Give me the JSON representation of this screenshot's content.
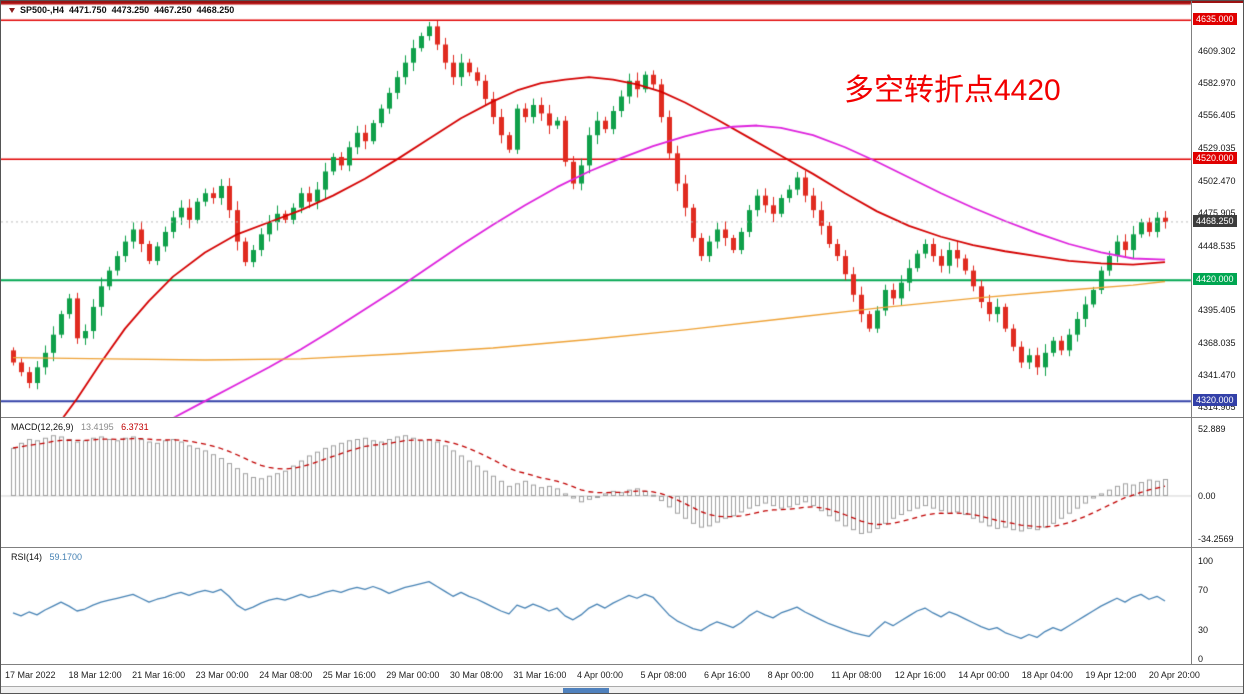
{
  "header": {
    "symbol": "SP500-,H4",
    "open": "4471.750",
    "high": "4473.250",
    "low": "4467.250",
    "close": "4468.250"
  },
  "annotation": {
    "text": "多空转折点4420",
    "color": "#f20000"
  },
  "indicators": {
    "macd_label": {
      "name": "MACD(12,26,9)",
      "value_main": "13.4195",
      "value_signal": "6.3731"
    },
    "rsi_label": {
      "name": "RSI(14)",
      "value": "59.1700"
    }
  },
  "price_axis": {
    "ticks": [
      "4609.302",
      "4582.970",
      "4556.405",
      "4529.035",
      "4502.470",
      "4475.905",
      "4448.535",
      "4395.405",
      "4368.035",
      "4341.470",
      "4314.905"
    ],
    "badges": [
      {
        "text": "4635.000",
        "price": 4635.0,
        "bg": "#e00000"
      },
      {
        "text": "4520.000",
        "price": 4520.0,
        "bg": "#e00000"
      },
      {
        "text": "4468.250",
        "price": 4468.25,
        "bg": "#3c3c3c"
      },
      {
        "text": "4420.000",
        "price": 4420.0,
        "bg": "#00a651"
      },
      {
        "text": "4320.000",
        "price": 4320.0,
        "bg": "#3340a8"
      }
    ]
  },
  "macd_axis": [
    {
      "label": "52.889",
      "value": 52.889
    },
    {
      "label": "0.00",
      "value": 0
    },
    {
      "label": "-34.2569",
      "value": -34.2569
    }
  ],
  "rsi_axis": [
    {
      "label": "100",
      "value": 100
    },
    {
      "label": "70",
      "value": 70
    },
    {
      "label": "30",
      "value": 30
    },
    {
      "label": "0",
      "value": 0
    }
  ],
  "colors": {
    "candle_up": "#0fa04a",
    "candle_down": "#e02b20",
    "ma_fast": "#d40000",
    "ma_mid": "#dd22dd",
    "ma_slow": "#eea236",
    "macd_hist": "#a0a0a0",
    "macd_signal": "#c00000",
    "rsi_line": "#4682b4",
    "last_price_line": "#bbbbbb"
  },
  "chart_data": {
    "type": "candlestick",
    "symbol": "SP500-",
    "timeframe": "H4",
    "x_ticks": [
      "17 Mar 2022",
      "18 Mar 12:00",
      "21 Mar 16:00",
      "23 Mar 00:00",
      "24 Mar 08:00",
      "25 Mar 16:00",
      "29 Mar 00:00",
      "30 Mar 08:00",
      "31 Mar 16:00",
      "4 Apr 00:00",
      "5 Apr 08:00",
      "6 Apr 16:00",
      "8 Apr 00:00",
      "11 Apr 08:00",
      "12 Apr 16:00",
      "14 Apr 00:00",
      "18 Apr 04:00",
      "19 Apr 12:00",
      "20 Apr 20:00"
    ],
    "panels": [
      {
        "name": "price",
        "type": "candlestick",
        "ylim": [
          4306.9,
          4651
        ],
        "first_open": 4362,
        "closes": [
          4352,
          4344,
          4335,
          4348,
          4360,
          4375,
          4392,
          4405,
          4372,
          4378,
          4398,
          4415,
          4428,
          4440,
          4452,
          4462,
          4450,
          4436,
          4448,
          4460,
          4472,
          4480,
          4470,
          4485,
          4492,
          4488,
          4498,
          4478,
          4452,
          4435,
          4445,
          4458,
          4468,
          4475,
          4470,
          4480,
          4492,
          4485,
          4495,
          4510,
          4522,
          4515,
          4530,
          4542,
          4535,
          4550,
          4562,
          4575,
          4588,
          4600,
          4612,
          4622,
          4630,
          4615,
          4600,
          4588,
          4600,
          4592,
          4585,
          4570,
          4555,
          4540,
          4528,
          4562,
          4555,
          4565,
          4558,
          4548,
          4552,
          4518,
          4500,
          4515,
          4540,
          4552,
          4545,
          4560,
          4572,
          4585,
          4578,
          4590,
          4582,
          4555,
          4525,
          4500,
          4480,
          4455,
          4440,
          4452,
          4462,
          4455,
          4445,
          4460,
          4478,
          4490,
          4482,
          4475,
          4488,
          4495,
          4505,
          4490,
          4478,
          4465,
          4450,
          4440,
          4425,
          4408,
          4392,
          4380,
          4395,
          4412,
          4405,
          4418,
          4430,
          4442,
          4450,
          4440,
          4432,
          4445,
          4438,
          4428,
          4415,
          4402,
          4392,
          4398,
          4380,
          4365,
          4352,
          4358,
          4348,
          4360,
          4370,
          4362,
          4375,
          4388,
          4400,
          4412,
          4428,
          4440,
          4452,
          4445,
          4458,
          4468,
          4460,
          4471.75,
          4468.25
        ],
        "last_price": 4468.25,
        "levels": [
          {
            "price": 4649,
            "color": "#b00000",
            "width": 2
          },
          {
            "price": 4635,
            "color": "#e00000",
            "width": 1.5
          },
          {
            "price": 4520,
            "color": "#e00000",
            "width": 1.5
          },
          {
            "price": 4420,
            "color": "#00a651",
            "width": 2
          },
          {
            "price": 4320,
            "color": "#3340a8",
            "width": 2
          }
        ],
        "moving_averages": [
          {
            "name": "ma-fast-red",
            "color": "#d40000",
            "width": 1.8,
            "points": [
              [
                5,
                4295
              ],
              [
                8,
                4322
              ],
              [
                11,
                4352
              ],
              [
                14,
                4380
              ],
              [
                17,
                4403
              ],
              [
                20,
                4423
              ],
              [
                24,
                4443
              ],
              [
                28,
                4458
              ],
              [
                32,
                4468
              ],
              [
                36,
                4478
              ],
              [
                40,
                4490
              ],
              [
                44,
                4504
              ],
              [
                48,
                4520
              ],
              [
                52,
                4537
              ],
              [
                56,
                4554
              ],
              [
                60,
                4568
              ],
              [
                63,
                4577
              ],
              [
                66,
                4583
              ],
              [
                69,
                4586
              ],
              [
                72,
                4588
              ],
              [
                75,
                4586
              ],
              [
                78,
                4582
              ],
              [
                81,
                4576
              ],
              [
                84,
                4567
              ],
              [
                88,
                4553
              ],
              [
                92,
                4538
              ],
              [
                96,
                4523
              ],
              [
                100,
                4508
              ],
              [
                104,
                4492
              ],
              [
                108,
                4477
              ],
              [
                112,
                4465
              ],
              [
                116,
                4456
              ],
              [
                120,
                4449
              ],
              [
                124,
                4444
              ],
              [
                128,
                4440
              ],
              [
                132,
                4436
              ],
              [
                136,
                4434
              ],
              [
                140,
                4433
              ],
              [
                144,
                4435
              ]
            ]
          },
          {
            "name": "ma-mid-magenta",
            "color": "#dd22dd",
            "width": 1.8,
            "points": [
              [
                20,
                4306
              ],
              [
                24,
                4320
              ],
              [
                28,
                4334
              ],
              [
                32,
                4348
              ],
              [
                36,
                4363
              ],
              [
                40,
                4379
              ],
              [
                44,
                4396
              ],
              [
                48,
                4413
              ],
              [
                52,
                4431
              ],
              [
                56,
                4449
              ],
              [
                60,
                4466
              ],
              [
                64,
                4482
              ],
              [
                68,
                4497
              ],
              [
                72,
                4510
              ],
              [
                76,
                4521
              ],
              [
                80,
                4531
              ],
              [
                84,
                4539
              ],
              [
                87,
                4544
              ],
              [
                90,
                4547
              ],
              [
                93,
                4548
              ],
              [
                96,
                4546
              ],
              [
                100,
                4540
              ],
              [
                104,
                4530
              ],
              [
                108,
                4518
              ],
              [
                112,
                4505
              ],
              [
                116,
                4492
              ],
              [
                120,
                4480
              ],
              [
                124,
                4469
              ],
              [
                128,
                4459
              ],
              [
                132,
                4450
              ],
              [
                136,
                4443
              ],
              [
                140,
                4438
              ],
              [
                144,
                4437
              ]
            ]
          },
          {
            "name": "ma-slow-orange",
            "color": "#eea236",
            "width": 1.4,
            "points": [
              [
                0,
                4356
              ],
              [
                12,
                4355
              ],
              [
                24,
                4354
              ],
              [
                36,
                4355
              ],
              [
                48,
                4359
              ],
              [
                60,
                4364
              ],
              [
                72,
                4371
              ],
              [
                84,
                4379
              ],
              [
                96,
                4388
              ],
              [
                108,
                4397
              ],
              [
                120,
                4405
              ],
              [
                132,
                4412
              ],
              [
                140,
                4416
              ],
              [
                144,
                4419
              ]
            ]
          }
        ]
      },
      {
        "name": "macd",
        "type": "macd",
        "label": "MACD(12,26,9)",
        "ylim": [
          -40.3,
          61.6
        ],
        "signal_ema_period": 9,
        "values": [
          38,
          42,
          45,
          44,
          46,
          48,
          47,
          45,
          43,
          44,
          46,
          47,
          45,
          44,
          46,
          47,
          45,
          43,
          42,
          44,
          45,
          43,
          40,
          38,
          36,
          33,
          30,
          26,
          22,
          18,
          15,
          14,
          16,
          18,
          20,
          24,
          28,
          32,
          35,
          38,
          40,
          42,
          44,
          45,
          46,
          44,
          43,
          45,
          47,
          48,
          46,
          44,
          45,
          43,
          40,
          36,
          32,
          28,
          24,
          20,
          16,
          12,
          8,
          10,
          12,
          9,
          7,
          8,
          6,
          2,
          -2,
          -5,
          -3,
          0,
          2,
          4,
          3,
          5,
          6,
          4,
          1,
          -4,
          -9,
          -14,
          -18,
          -22,
          -25,
          -24,
          -21,
          -18,
          -16,
          -13,
          -10,
          -8,
          -6,
          -8,
          -10,
          -9,
          -7,
          -5,
          -8,
          -12,
          -16,
          -20,
          -24,
          -27,
          -30,
          -29,
          -26,
          -22,
          -18,
          -15,
          -12,
          -10,
          -8,
          -10,
          -12,
          -14,
          -13,
          -15,
          -18,
          -21,
          -24,
          -26,
          -25,
          -27,
          -28,
          -26,
          -27,
          -25,
          -22,
          -18,
          -14,
          -10,
          -6,
          -2,
          2,
          5,
          8,
          10,
          9,
          11,
          13,
          12,
          13.4
        ]
      },
      {
        "name": "rsi",
        "type": "line",
        "label": "RSI(14)",
        "ylim": [
          -5.1,
          113.3
        ],
        "values": [
          47,
          44,
          48,
          45,
          50,
          54,
          58,
          54,
          49,
          51,
          55,
          58,
          60,
          62,
          64,
          66,
          62,
          58,
          61,
          63,
          66,
          68,
          65,
          68,
          70,
          68,
          71,
          64,
          55,
          50,
          53,
          57,
          60,
          62,
          60,
          63,
          66,
          63,
          65,
          68,
          70,
          68,
          71,
          73,
          71,
          74,
          71,
          67,
          70,
          73,
          75,
          77,
          79,
          74,
          69,
          64,
          68,
          64,
          61,
          57,
          53,
          49,
          46,
          55,
          52,
          56,
          53,
          49,
          52,
          44,
          40,
          45,
          52,
          56,
          52,
          57,
          61,
          65,
          62,
          66,
          63,
          54,
          45,
          39,
          35,
          31,
          29,
          34,
          38,
          35,
          32,
          37,
          44,
          49,
          45,
          42,
          47,
          50,
          53,
          48,
          44,
          40,
          36,
          33,
          30,
          27,
          25,
          23,
          31,
          38,
          34,
          39,
          44,
          49,
          52,
          47,
          43,
          48,
          45,
          41,
          37,
          33,
          30,
          32,
          27,
          24,
          21,
          25,
          22,
          28,
          32,
          29,
          34,
          39,
          44,
          49,
          54,
          58,
          62,
          58,
          63,
          66,
          61,
          64,
          59.2
        ]
      }
    ]
  }
}
